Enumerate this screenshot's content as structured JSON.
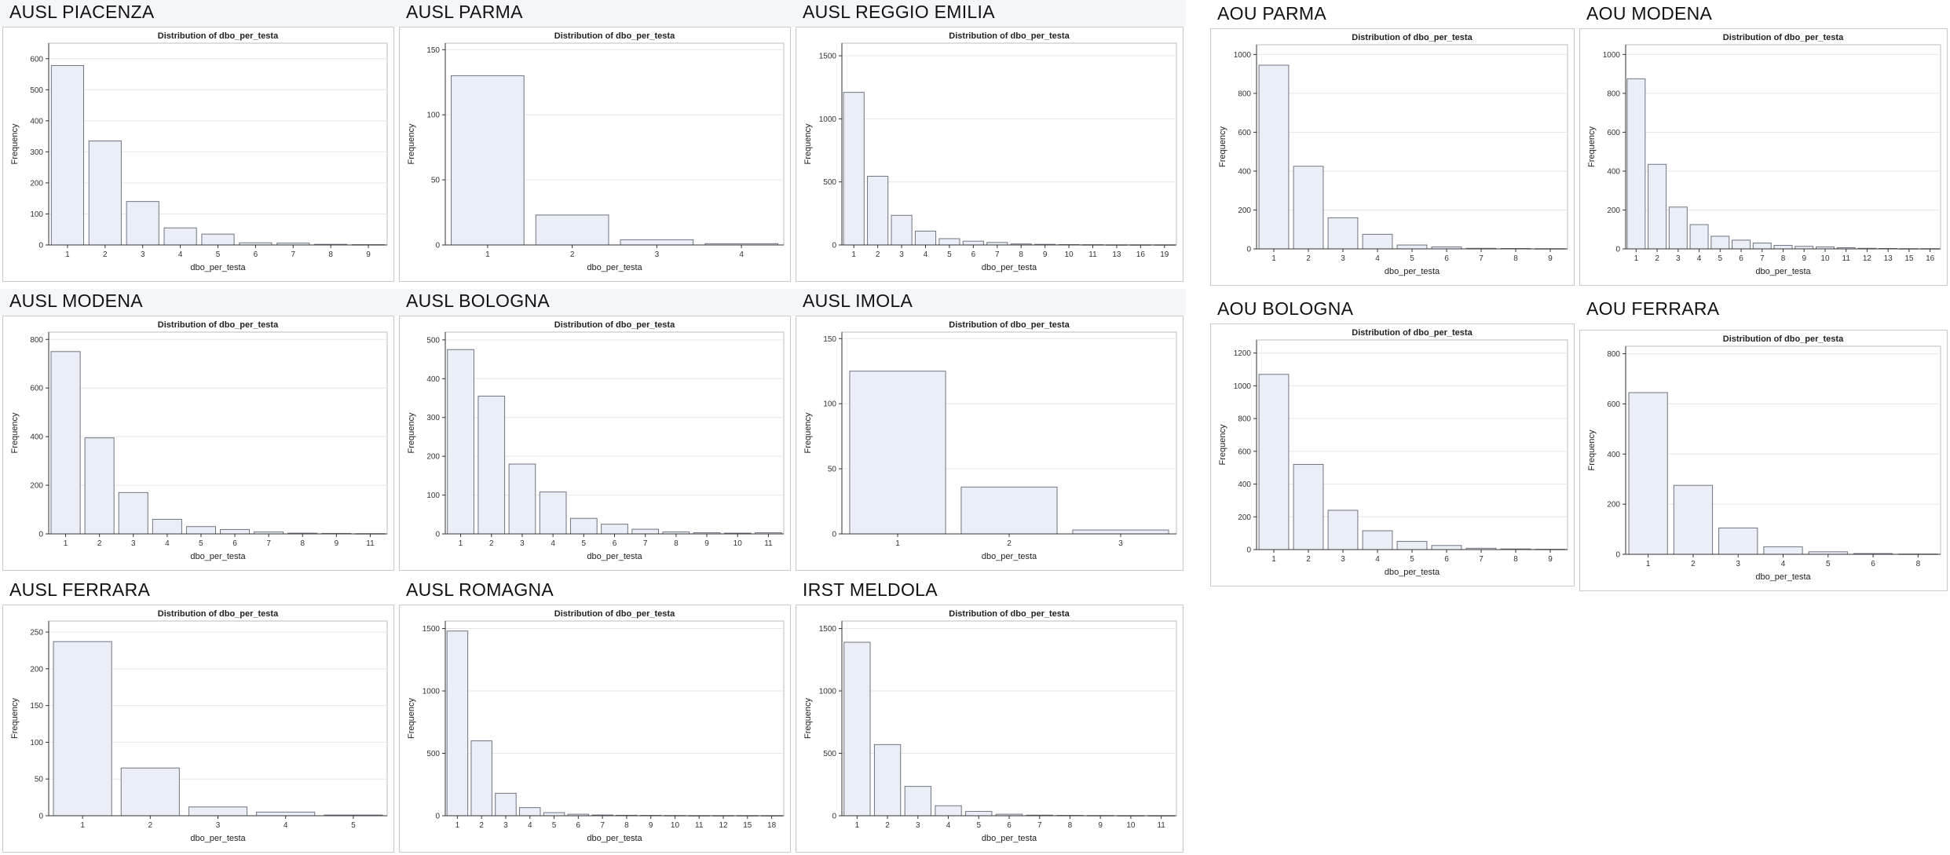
{
  "style": {
    "bar_fill": "#e9eef7",
    "bar_stroke": "#6f7480",
    "grid": "#e6e6e6",
    "axis": "#333333"
  },
  "panels": [
    {
      "title": "AUSL PIACENZA",
      "chart_title": "Distribution of dbo_per_testa",
      "xlabel": "dbo_per_testa",
      "ylabel": "Frequency"
    },
    {
      "title": "AUSL PARMA",
      "chart_title": "Distribution of dbo_per_testa",
      "xlabel": "dbo_per_testa",
      "ylabel": "Frequency"
    },
    {
      "title": "AUSL REGGIO EMILIA",
      "chart_title": "Distribution of dbo_per_testa",
      "xlabel": "dbo_per_testa",
      "ylabel": "Frequency"
    },
    {
      "title": "AOU PARMA",
      "chart_title": "Distribution of dbo_per_testa",
      "xlabel": "dbo_per_testa",
      "ylabel": "Frequency"
    },
    {
      "title": "AOU MODENA",
      "chart_title": "Distribution of dbo_per_testa",
      "xlabel": "dbo_per_testa",
      "ylabel": "Frequency"
    },
    {
      "title": "AUSL MODENA",
      "chart_title": "Distribution of dbo_per_testa",
      "xlabel": "dbo_per_testa",
      "ylabel": "Frequency"
    },
    {
      "title": "AUSL BOLOGNA",
      "chart_title": "Distribution of dbo_per_testa",
      "xlabel": "dbo_per_testa",
      "ylabel": "Frequency"
    },
    {
      "title": "AUSL IMOLA",
      "chart_title": "Distribution of dbo_per_testa",
      "xlabel": "dbo_per_testa",
      "ylabel": "Frequency"
    },
    {
      "title": "AOU BOLOGNA",
      "chart_title": "Distribution of dbo_per_testa",
      "xlabel": "dbo_per_testa",
      "ylabel": "Frequency"
    },
    {
      "title": "AOU FERRARA",
      "chart_title": "Distribution of dbo_per_testa",
      "xlabel": "dbo_per_testa",
      "ylabel": "Frequency"
    },
    {
      "title": "AUSL FERRARA",
      "chart_title": "Distribution of dbo_per_testa",
      "xlabel": "dbo_per_testa",
      "ylabel": "Frequency"
    },
    {
      "title": "AUSL ROMAGNA",
      "chart_title": "Distribution of dbo_per_testa",
      "xlabel": "dbo_per_testa",
      "ylabel": "Frequency"
    },
    {
      "title": "IRST MELDOLA",
      "chart_title": "Distribution of dbo_per_testa",
      "xlabel": "dbo_per_testa",
      "ylabel": "Frequency"
    }
  ],
  "chart_data": [
    {
      "type": "bar",
      "title": "Distribution of dbo_per_testa",
      "xlabel": "dbo_per_testa",
      "ylabel": "Frequency",
      "categories": [
        "1",
        "2",
        "3",
        "4",
        "5",
        "6",
        "7",
        "8",
        "9"
      ],
      "values": [
        578,
        335,
        140,
        55,
        35,
        7,
        6,
        2,
        1
      ],
      "ylim": [
        0,
        650
      ],
      "yticks": [
        0,
        100,
        200,
        300,
        400,
        500,
        600
      ]
    },
    {
      "type": "bar",
      "title": "Distribution of dbo_per_testa",
      "xlabel": "dbo_per_testa",
      "ylabel": "Frequency",
      "categories": [
        "1",
        "2",
        "3",
        "4"
      ],
      "values": [
        130,
        23,
        4,
        1
      ],
      "ylim": [
        0,
        155
      ],
      "yticks": [
        0,
        50,
        100,
        150
      ]
    },
    {
      "type": "bar",
      "title": "Distribution of dbo_per_testa",
      "xlabel": "dbo_per_testa",
      "ylabel": "Frequency",
      "categories": [
        "1",
        "2",
        "3",
        "4",
        "5",
        "6",
        "7",
        "8",
        "9",
        "10",
        "11",
        "13",
        "16",
        "19"
      ],
      "values": [
        1210,
        545,
        235,
        110,
        50,
        30,
        20,
        8,
        5,
        3,
        2,
        1,
        1,
        1
      ],
      "ylim": [
        0,
        1600
      ],
      "yticks": [
        0,
        500,
        1000,
        1500
      ]
    },
    {
      "type": "bar",
      "title": "Distribution of dbo_per_testa",
      "xlabel": "dbo_per_testa",
      "ylabel": "Frequency",
      "categories": [
        "1",
        "2",
        "3",
        "4",
        "5",
        "6",
        "7",
        "8",
        "9"
      ],
      "values": [
        945,
        425,
        160,
        75,
        20,
        10,
        3,
        2,
        1
      ],
      "ylim": [
        0,
        1050
      ],
      "yticks": [
        0,
        200,
        400,
        600,
        800,
        1000
      ]
    },
    {
      "type": "bar",
      "title": "Distribution of dbo_per_testa",
      "xlabel": "dbo_per_testa",
      "ylabel": "Frequency",
      "categories": [
        "1",
        "2",
        "3",
        "4",
        "5",
        "6",
        "7",
        "8",
        "9",
        "10",
        "11",
        "12",
        "13",
        "15",
        "16"
      ],
      "values": [
        875,
        435,
        215,
        125,
        65,
        45,
        30,
        18,
        13,
        10,
        6,
        3,
        2,
        1,
        1
      ],
      "ylim": [
        0,
        1050
      ],
      "yticks": [
        0,
        200,
        400,
        600,
        800,
        1000
      ]
    },
    {
      "type": "bar",
      "title": "Distribution of dbo_per_testa",
      "xlabel": "dbo_per_testa",
      "ylabel": "Frequency",
      "categories": [
        "1",
        "2",
        "3",
        "4",
        "5",
        "6",
        "7",
        "8",
        "9",
        "11"
      ],
      "values": [
        750,
        395,
        170,
        60,
        30,
        18,
        8,
        3,
        2,
        1
      ],
      "ylim": [
        0,
        830
      ],
      "yticks": [
        0,
        200,
        400,
        600,
        800
      ]
    },
    {
      "type": "bar",
      "title": "Distribution of dbo_per_testa",
      "xlabel": "dbo_per_testa",
      "ylabel": "Frequency",
      "categories": [
        "1",
        "2",
        "3",
        "4",
        "5",
        "6",
        "7",
        "8",
        "9",
        "10",
        "11"
      ],
      "values": [
        475,
        355,
        180,
        108,
        40,
        25,
        12,
        5,
        3,
        2,
        3
      ],
      "ylim": [
        0,
        520
      ],
      "yticks": [
        0,
        100,
        200,
        300,
        400,
        500
      ]
    },
    {
      "type": "bar",
      "title": "Distribution of dbo_per_testa",
      "xlabel": "dbo_per_testa",
      "ylabel": "Frequency",
      "categories": [
        "1",
        "2",
        "3"
      ],
      "values": [
        125,
        36,
        3
      ],
      "ylim": [
        0,
        155
      ],
      "yticks": [
        0,
        50,
        100,
        150
      ]
    },
    {
      "type": "bar",
      "title": "Distribution of dbo_per_testa",
      "xlabel": "dbo_per_testa",
      "ylabel": "Frequency",
      "categories": [
        "1",
        "2",
        "3",
        "4",
        "5",
        "6",
        "7",
        "8",
        "9"
      ],
      "values": [
        1070,
        520,
        240,
        115,
        50,
        25,
        8,
        4,
        2
      ],
      "ylim": [
        0,
        1280
      ],
      "yticks": [
        0,
        200,
        400,
        600,
        800,
        1000,
        1200
      ]
    },
    {
      "type": "bar",
      "title": "Distribution of dbo_per_testa",
      "xlabel": "dbo_per_testa",
      "ylabel": "Frequency",
      "categories": [
        "1",
        "2",
        "3",
        "4",
        "5",
        "6",
        "8"
      ],
      "values": [
        645,
        275,
        105,
        30,
        10,
        3,
        1
      ],
      "ylim": [
        0,
        830
      ],
      "yticks": [
        0,
        200,
        400,
        600,
        800
      ]
    },
    {
      "type": "bar",
      "title": "Distribution of dbo_per_testa",
      "xlabel": "dbo_per_testa",
      "ylabel": "Frequency",
      "categories": [
        "1",
        "2",
        "3",
        "4",
        "5"
      ],
      "values": [
        237,
        65,
        12,
        5,
        1
      ],
      "ylim": [
        0,
        265
      ],
      "yticks": [
        0,
        50,
        100,
        150,
        200,
        250
      ]
    },
    {
      "type": "bar",
      "title": "Distribution of dbo_per_testa",
      "xlabel": "dbo_per_testa",
      "ylabel": "Frequency",
      "categories": [
        "1",
        "2",
        "3",
        "4",
        "5",
        "6",
        "7",
        "8",
        "9",
        "10",
        "11",
        "12",
        "15",
        "18"
      ],
      "values": [
        1480,
        600,
        180,
        65,
        25,
        12,
        6,
        4,
        3,
        2,
        1,
        1,
        1,
        1
      ],
      "ylim": [
        0,
        1560
      ],
      "yticks": [
        0,
        500,
        1000,
        1500
      ]
    },
    {
      "type": "bar",
      "title": "Distribution of dbo_per_testa",
      "xlabel": "dbo_per_testa",
      "ylabel": "Frequency",
      "categories": [
        "1",
        "2",
        "3",
        "4",
        "5",
        "6",
        "7",
        "8",
        "9",
        "10",
        "11"
      ],
      "values": [
        1390,
        570,
        235,
        80,
        35,
        12,
        5,
        3,
        2,
        1,
        1
      ],
      "ylim": [
        0,
        1560
      ],
      "yticks": [
        0,
        500,
        1000,
        1500
      ]
    }
  ]
}
